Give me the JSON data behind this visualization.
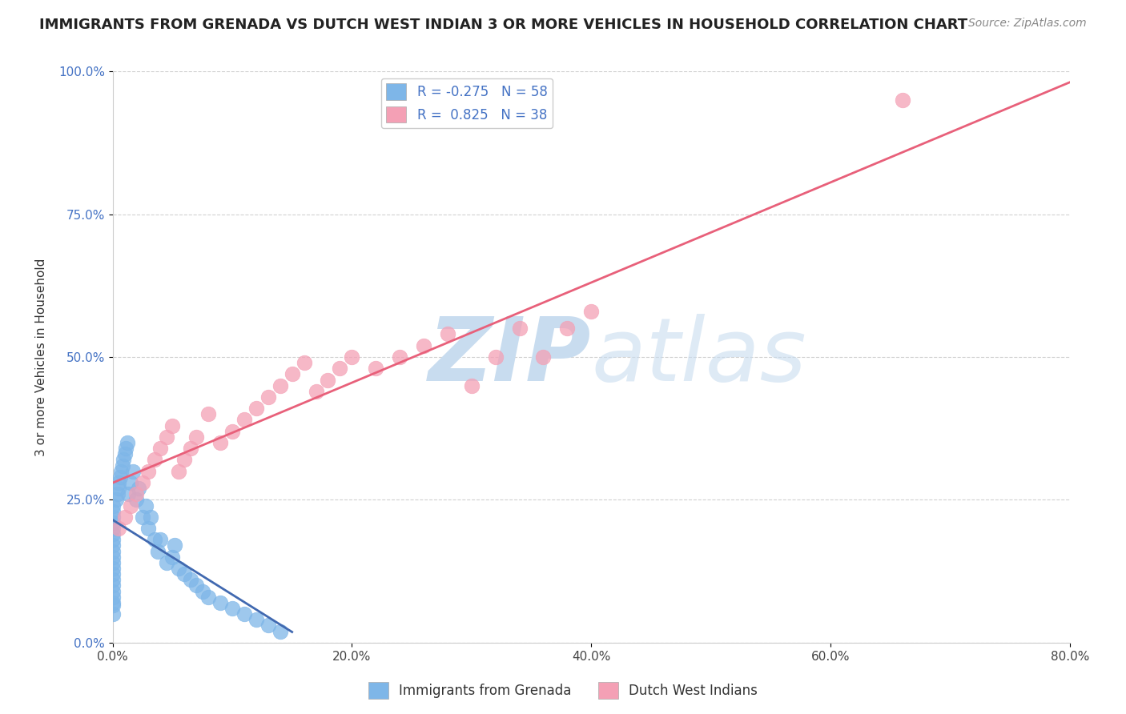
{
  "title": "IMMIGRANTS FROM GRENADA VS DUTCH WEST INDIAN 3 OR MORE VEHICLES IN HOUSEHOLD CORRELATION CHART",
  "source": "Source: ZipAtlas.com",
  "ylabel": "3 or more Vehicles in Household",
  "xlim": [
    0.0,
    80.0
  ],
  "ylim": [
    0.0,
    100.0
  ],
  "legend1_label": "Immigrants from Grenada",
  "legend2_label": "Dutch West Indians",
  "R1": -0.275,
  "N1": 58,
  "R2": 0.825,
  "N2": 38,
  "color1": "#7EB6E8",
  "color2": "#F4A0B5",
  "line1_color": "#4169B0",
  "line2_color": "#E8607A",
  "watermark_zip": "ZIP",
  "watermark_atlas": "atlas",
  "watermark_color": "#C8DCEF",
  "background_color": "#FFFFFF",
  "title_fontsize": 13,
  "source_fontsize": 10,
  "legend_fontsize": 12,
  "axis_fontsize": 11,
  "scatter1_x": [
    0.0,
    0.0,
    0.0,
    0.0,
    0.0,
    0.0,
    0.0,
    0.0,
    0.0,
    0.0,
    0.0,
    0.0,
    0.0,
    0.0,
    0.0,
    0.0,
    0.0,
    0.0,
    0.0,
    0.0,
    0.3,
    0.4,
    0.5,
    0.5,
    0.6,
    0.7,
    0.8,
    0.9,
    1.0,
    1.1,
    1.2,
    1.3,
    1.5,
    1.7,
    2.0,
    2.2,
    2.5,
    2.8,
    3.0,
    3.2,
    3.5,
    3.8,
    4.0,
    4.5,
    5.0,
    5.2,
    5.5,
    6.0,
    6.5,
    7.0,
    7.5,
    8.0,
    9.0,
    10.0,
    11.0,
    12.0,
    13.0,
    14.0
  ],
  "scatter1_y": [
    5.0,
    6.5,
    7.0,
    8.0,
    9.0,
    10.0,
    11.0,
    12.0,
    13.0,
    14.0,
    15.0,
    16.0,
    17.0,
    18.0,
    19.0,
    20.0,
    21.0,
    22.0,
    23.0,
    24.0,
    25.0,
    26.0,
    27.0,
    28.0,
    29.0,
    30.0,
    31.0,
    32.0,
    33.0,
    34.0,
    35.0,
    26.0,
    28.0,
    30.0,
    25.0,
    27.0,
    22.0,
    24.0,
    20.0,
    22.0,
    18.0,
    16.0,
    18.0,
    14.0,
    15.0,
    17.0,
    13.0,
    12.0,
    11.0,
    10.0,
    9.0,
    8.0,
    7.0,
    6.0,
    5.0,
    4.0,
    3.0,
    2.0
  ],
  "scatter2_x": [
    0.5,
    1.0,
    1.5,
    2.0,
    2.5,
    3.0,
    3.5,
    4.0,
    4.5,
    5.0,
    5.5,
    6.0,
    6.5,
    7.0,
    8.0,
    9.0,
    10.0,
    11.0,
    12.0,
    13.0,
    14.0,
    15.0,
    16.0,
    17.0,
    18.0,
    19.0,
    20.0,
    22.0,
    24.0,
    26.0,
    28.0,
    30.0,
    32.0,
    34.0,
    36.0,
    38.0,
    40.0,
    66.0
  ],
  "scatter2_y": [
    20.0,
    22.0,
    24.0,
    26.0,
    28.0,
    30.0,
    32.0,
    34.0,
    36.0,
    38.0,
    30.0,
    32.0,
    34.0,
    36.0,
    40.0,
    35.0,
    37.0,
    39.0,
    41.0,
    43.0,
    45.0,
    47.0,
    49.0,
    44.0,
    46.0,
    48.0,
    50.0,
    48.0,
    50.0,
    52.0,
    54.0,
    45.0,
    50.0,
    55.0,
    50.0,
    55.0,
    58.0,
    95.0
  ]
}
